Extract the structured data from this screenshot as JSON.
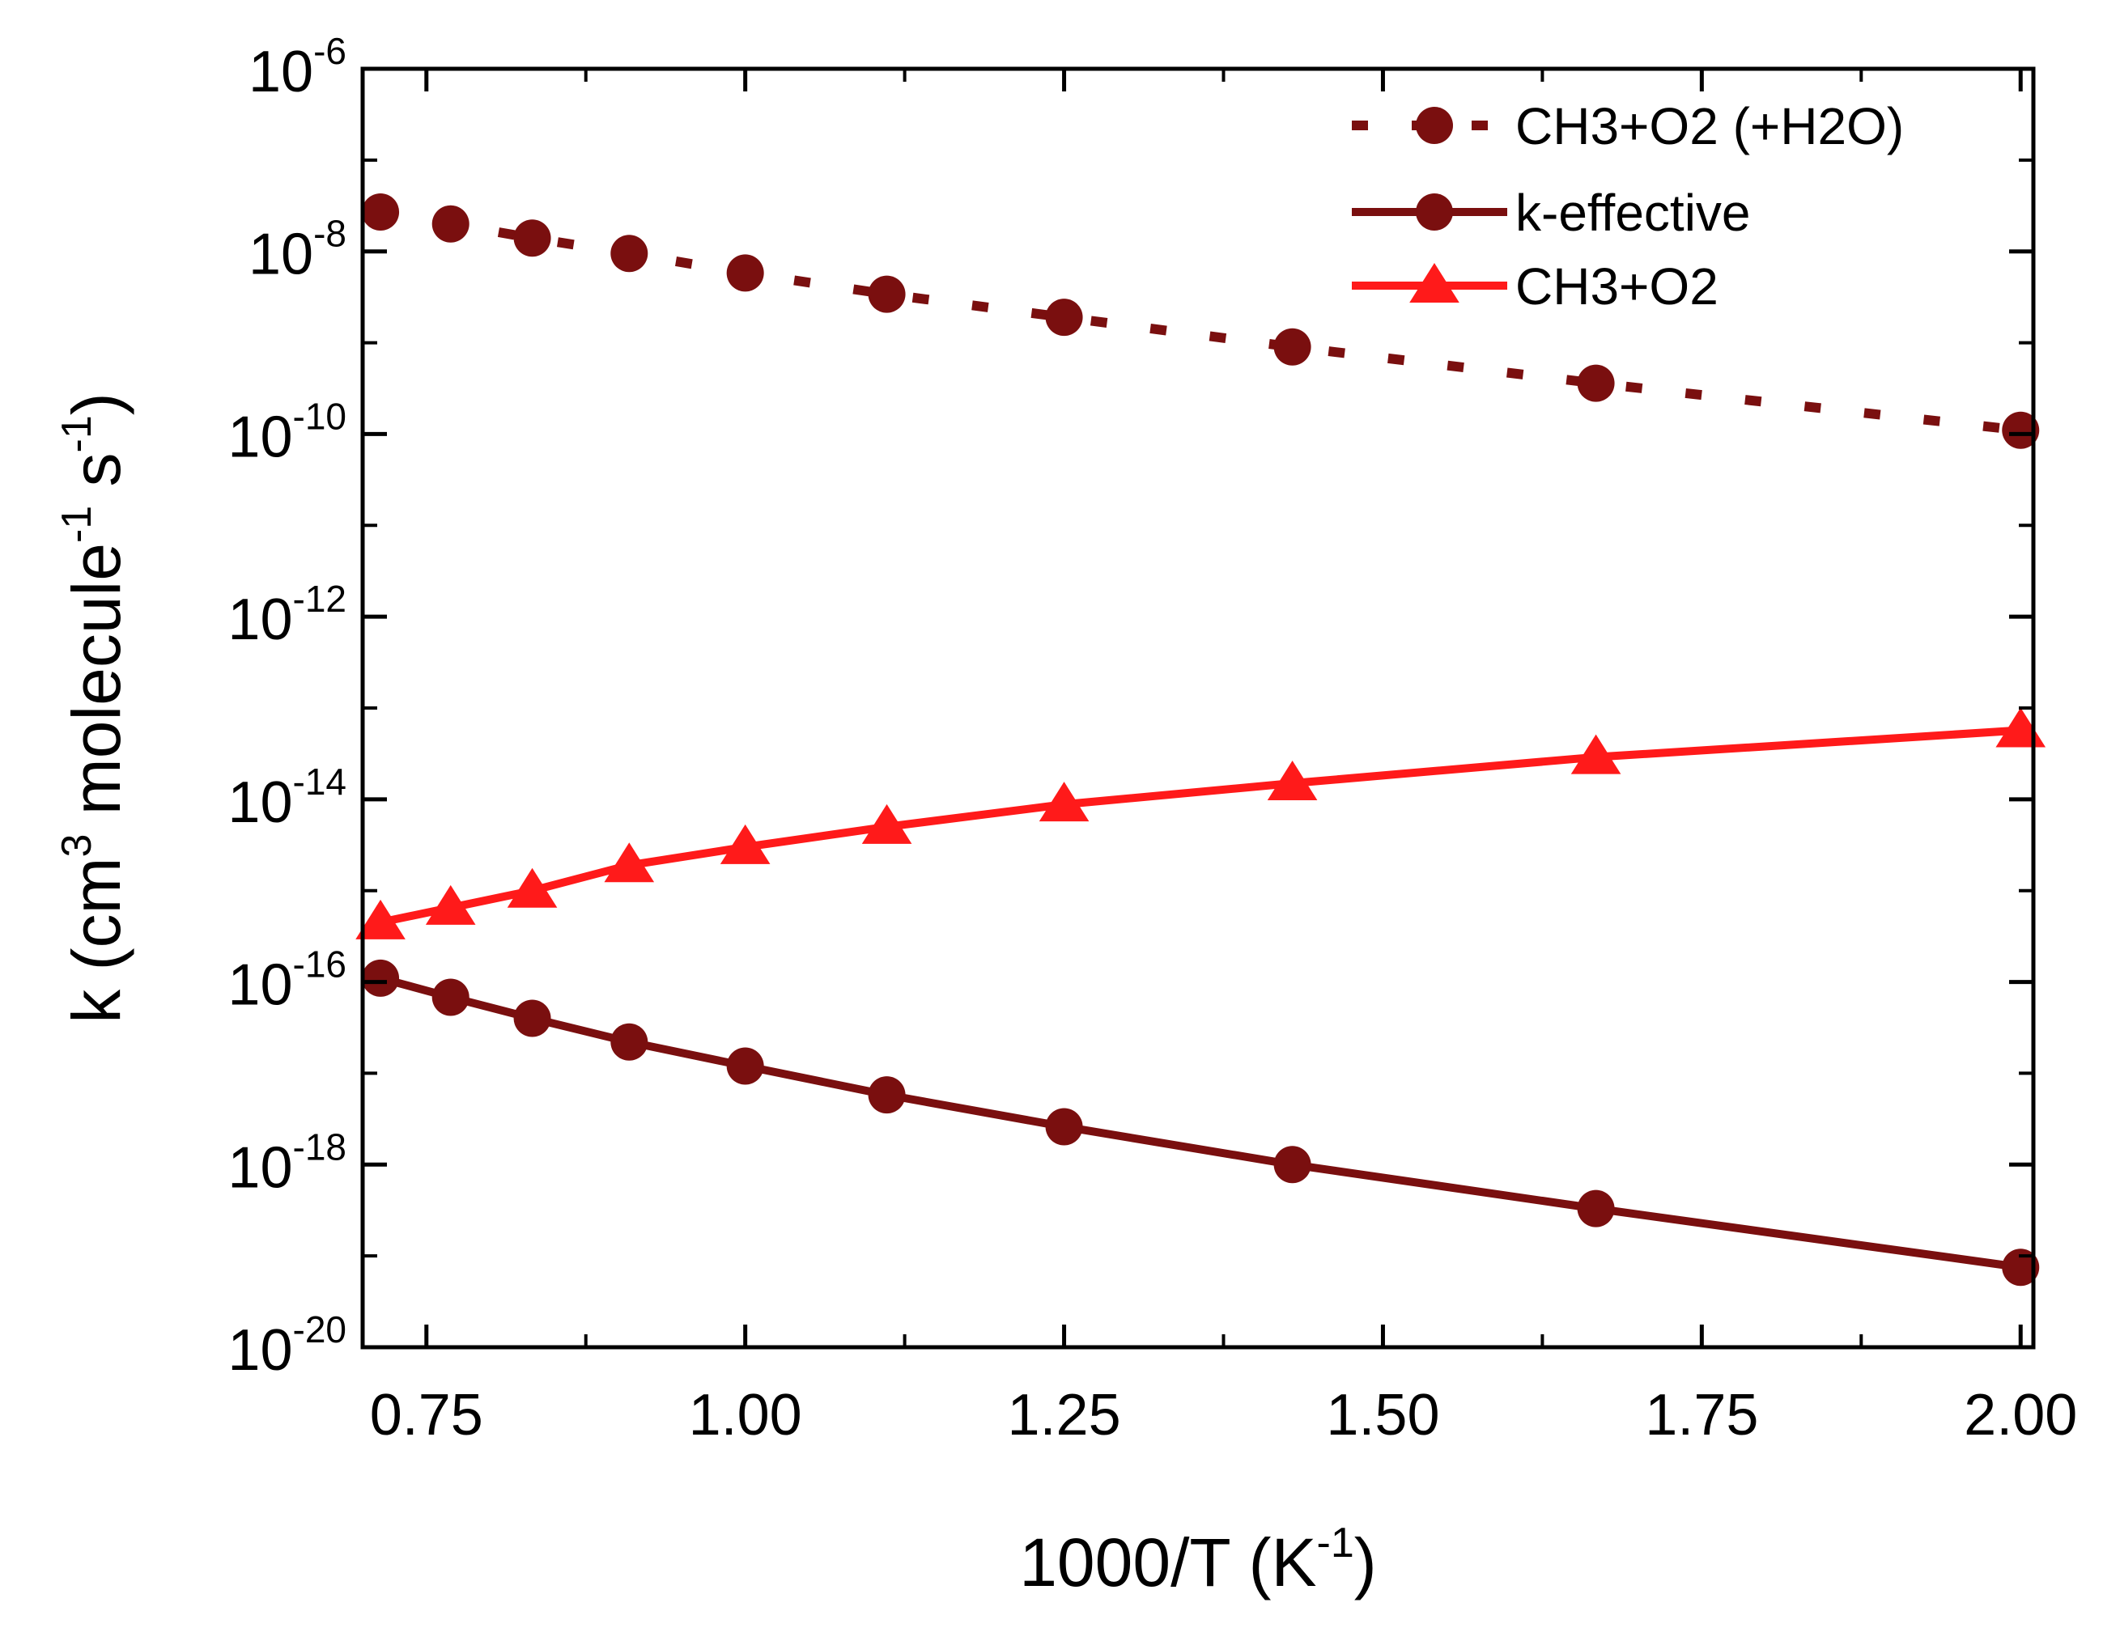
{
  "chart_data": {
    "type": "line",
    "y_scale": "log",
    "xlabel": "1000/T (K",
    "xlabel_sup": "-1",
    "xlabel_close": ")",
    "ylabel_parts": [
      "k (cm",
      "3",
      " molecule",
      "-1",
      " s",
      "-1",
      ")"
    ],
    "xlim": [
      0.7,
      2.01
    ],
    "ylim": [
      1e-20,
      1e-06
    ],
    "x_ticks": [
      {
        "value": 0.75,
        "label": "0.75"
      },
      {
        "value": 1.0,
        "label": "1.00"
      },
      {
        "value": 1.25,
        "label": "1.25"
      },
      {
        "value": 1.5,
        "label": "1.50"
      },
      {
        "value": 1.75,
        "label": "1.75"
      },
      {
        "value": 2.0,
        "label": "2.00"
      }
    ],
    "x_minor_ticks": [
      0.875,
      1.125,
      1.375,
      1.625,
      1.875
    ],
    "y_ticks": [
      {
        "exp": -20,
        "base": "10",
        "sup": "-20"
      },
      {
        "exp": -18,
        "base": "10",
        "sup": "-18"
      },
      {
        "exp": -16,
        "base": "10",
        "sup": "-16"
      },
      {
        "exp": -14,
        "base": "10",
        "sup": "-14"
      },
      {
        "exp": -12,
        "base": "10",
        "sup": "-12"
      },
      {
        "exp": -10,
        "base": "10",
        "sup": "-10"
      },
      {
        "exp": -8,
        "base": "10",
        "sup": "-8"
      },
      {
        "exp": -6,
        "base": "10",
        "sup": "-6"
      }
    ],
    "y_minor_ticks": [
      -19,
      -17,
      -15,
      -13,
      -11,
      -9,
      -7
    ],
    "x": [
      0.714,
      0.769,
      0.833,
      0.909,
      1.0,
      1.111,
      1.25,
      1.429,
      1.667,
      2.0
    ],
    "series": [
      {
        "name": "CH3+O2 (+H2O)",
        "color": "#7a0f0f",
        "line": "dotted",
        "marker": "circle",
        "values": [
          2.7e-08,
          2e-08,
          1.4e-08,
          9.5e-09,
          5.8e-09,
          3.4e-09,
          1.9e-09,
          9e-10,
          3.6e-10,
          1.1e-10
        ]
      },
      {
        "name": "k-effective",
        "color": "#7a0f0f",
        "line": "solid",
        "marker": "circle",
        "values": [
          1.1e-16,
          6.8e-17,
          4e-17,
          2.2e-17,
          1.2e-17,
          5.8e-18,
          2.6e-18,
          1e-18,
          3.3e-19,
          7.5e-20
        ]
      },
      {
        "name": "CH3+O2",
        "color": "#ff1a1a",
        "line": "solid",
        "marker": "triangle",
        "values": [
          4.5e-16,
          6.5e-16,
          1e-15,
          1.9e-15,
          3e-15,
          5e-15,
          8.8e-15,
          1.5e-14,
          2.9e-14,
          5.7e-14
        ]
      }
    ],
    "legend_position": "top-right"
  }
}
